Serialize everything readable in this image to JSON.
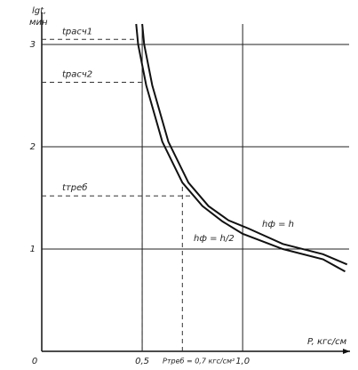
{
  "chart_data": {
    "type": "line",
    "y_label": [
      "lgt,",
      "мин"
    ],
    "x_label": "P, кгс/см",
    "xlim": [
      0,
      1.53
    ],
    "ylim": [
      0,
      3.2
    ],
    "xticks": [
      0,
      {
        "value": 0.5,
        "label": "0,5"
      },
      {
        "value": 1.0,
        "label": "1,0"
      }
    ],
    "yticks": [
      1,
      2,
      3
    ],
    "grid": true,
    "series": [
      {
        "name": "hф = h/2",
        "color": "#111111",
        "x": [
          0.47,
          0.48,
          0.52,
          0.6,
          0.7,
          0.8,
          0.9,
          1.0,
          1.2,
          1.4,
          1.51
        ],
        "values": [
          3.2,
          3.0,
          2.6,
          2.05,
          1.65,
          1.42,
          1.27,
          1.15,
          1.0,
          0.9,
          0.78
        ]
      },
      {
        "name": "hф = h",
        "color": "#111111",
        "x": [
          0.5,
          0.51,
          0.55,
          0.63,
          0.73,
          0.83,
          0.93,
          1.03,
          1.2,
          1.4,
          1.52
        ],
        "values": [
          3.2,
          3.0,
          2.6,
          2.05,
          1.65,
          1.42,
          1.28,
          1.2,
          1.05,
          0.95,
          0.85
        ]
      }
    ],
    "y_refs": [
      {
        "label": "tрасч1",
        "value": 3.05
      },
      {
        "label": "tрасч2",
        "value": 2.63
      },
      {
        "label": "tтреб",
        "value": 1.52
      }
    ],
    "x_refs": [
      {
        "value": 0.5
      },
      {
        "label": "Pтреб = 0,7 кгс/см²",
        "value": 0.7
      }
    ]
  }
}
